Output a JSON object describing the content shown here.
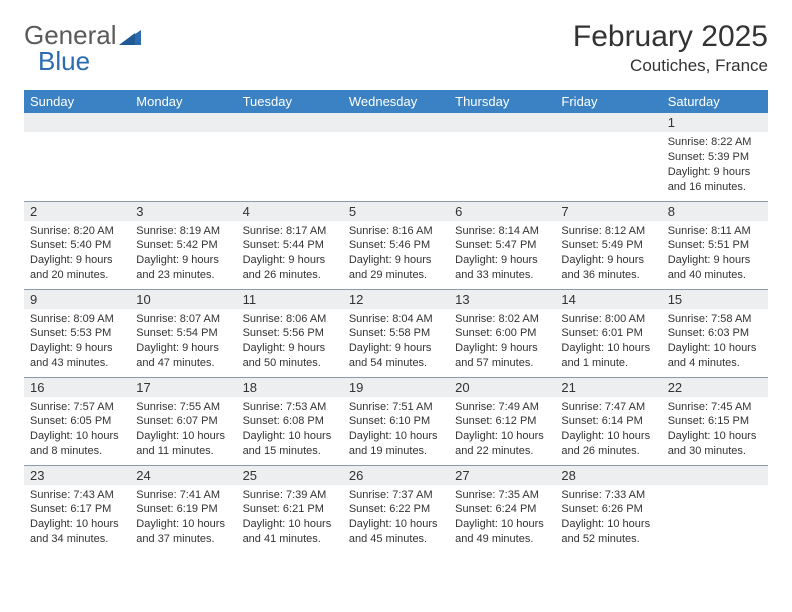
{
  "brand": {
    "part1": "General",
    "part2": "Blue"
  },
  "title": "February 2025",
  "location": "Coutiches, France",
  "colors": {
    "header_bg": "#3b82c4",
    "header_text": "#ffffff",
    "daynum_bg": "#eceef0",
    "border": "#8a9bb0",
    "text": "#333333",
    "logo_gray": "#5a5a5a",
    "logo_blue": "#2b6cb0"
  },
  "days_of_week": [
    "Sunday",
    "Monday",
    "Tuesday",
    "Wednesday",
    "Thursday",
    "Friday",
    "Saturday"
  ],
  "weeks": [
    [
      null,
      null,
      null,
      null,
      null,
      null,
      {
        "n": "1",
        "sr": "8:22 AM",
        "ss": "5:39 PM",
        "dl": "9 hours and 16 minutes."
      }
    ],
    [
      {
        "n": "2",
        "sr": "8:20 AM",
        "ss": "5:40 PM",
        "dl": "9 hours and 20 minutes."
      },
      {
        "n": "3",
        "sr": "8:19 AM",
        "ss": "5:42 PM",
        "dl": "9 hours and 23 minutes."
      },
      {
        "n": "4",
        "sr": "8:17 AM",
        "ss": "5:44 PM",
        "dl": "9 hours and 26 minutes."
      },
      {
        "n": "5",
        "sr": "8:16 AM",
        "ss": "5:46 PM",
        "dl": "9 hours and 29 minutes."
      },
      {
        "n": "6",
        "sr": "8:14 AM",
        "ss": "5:47 PM",
        "dl": "9 hours and 33 minutes."
      },
      {
        "n": "7",
        "sr": "8:12 AM",
        "ss": "5:49 PM",
        "dl": "9 hours and 36 minutes."
      },
      {
        "n": "8",
        "sr": "8:11 AM",
        "ss": "5:51 PM",
        "dl": "9 hours and 40 minutes."
      }
    ],
    [
      {
        "n": "9",
        "sr": "8:09 AM",
        "ss": "5:53 PM",
        "dl": "9 hours and 43 minutes."
      },
      {
        "n": "10",
        "sr": "8:07 AM",
        "ss": "5:54 PM",
        "dl": "9 hours and 47 minutes."
      },
      {
        "n": "11",
        "sr": "8:06 AM",
        "ss": "5:56 PM",
        "dl": "9 hours and 50 minutes."
      },
      {
        "n": "12",
        "sr": "8:04 AM",
        "ss": "5:58 PM",
        "dl": "9 hours and 54 minutes."
      },
      {
        "n": "13",
        "sr": "8:02 AM",
        "ss": "6:00 PM",
        "dl": "9 hours and 57 minutes."
      },
      {
        "n": "14",
        "sr": "8:00 AM",
        "ss": "6:01 PM",
        "dl": "10 hours and 1 minute."
      },
      {
        "n": "15",
        "sr": "7:58 AM",
        "ss": "6:03 PM",
        "dl": "10 hours and 4 minutes."
      }
    ],
    [
      {
        "n": "16",
        "sr": "7:57 AM",
        "ss": "6:05 PM",
        "dl": "10 hours and 8 minutes."
      },
      {
        "n": "17",
        "sr": "7:55 AM",
        "ss": "6:07 PM",
        "dl": "10 hours and 11 minutes."
      },
      {
        "n": "18",
        "sr": "7:53 AM",
        "ss": "6:08 PM",
        "dl": "10 hours and 15 minutes."
      },
      {
        "n": "19",
        "sr": "7:51 AM",
        "ss": "6:10 PM",
        "dl": "10 hours and 19 minutes."
      },
      {
        "n": "20",
        "sr": "7:49 AM",
        "ss": "6:12 PM",
        "dl": "10 hours and 22 minutes."
      },
      {
        "n": "21",
        "sr": "7:47 AM",
        "ss": "6:14 PM",
        "dl": "10 hours and 26 minutes."
      },
      {
        "n": "22",
        "sr": "7:45 AM",
        "ss": "6:15 PM",
        "dl": "10 hours and 30 minutes."
      }
    ],
    [
      {
        "n": "23",
        "sr": "7:43 AM",
        "ss": "6:17 PM",
        "dl": "10 hours and 34 minutes."
      },
      {
        "n": "24",
        "sr": "7:41 AM",
        "ss": "6:19 PM",
        "dl": "10 hours and 37 minutes."
      },
      {
        "n": "25",
        "sr": "7:39 AM",
        "ss": "6:21 PM",
        "dl": "10 hours and 41 minutes."
      },
      {
        "n": "26",
        "sr": "7:37 AM",
        "ss": "6:22 PM",
        "dl": "10 hours and 45 minutes."
      },
      {
        "n": "27",
        "sr": "7:35 AM",
        "ss": "6:24 PM",
        "dl": "10 hours and 49 minutes."
      },
      {
        "n": "28",
        "sr": "7:33 AM",
        "ss": "6:26 PM",
        "dl": "10 hours and 52 minutes."
      },
      null
    ]
  ],
  "labels": {
    "sunrise": "Sunrise: ",
    "sunset": "Sunset: ",
    "daylight": "Daylight: "
  }
}
